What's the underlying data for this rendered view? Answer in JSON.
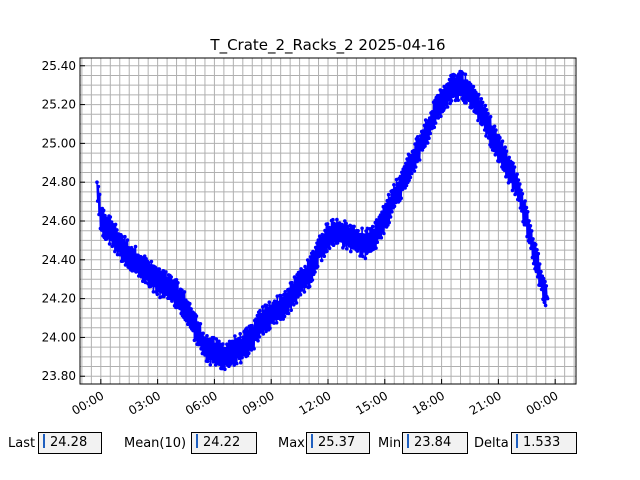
{
  "chart_data": {
    "type": "line",
    "title": "T_Crate_2_Racks_2 2025-04-16",
    "xlabel": "",
    "ylabel": "",
    "x_tick_labels": [
      "00:00",
      "03:00",
      "06:00",
      "09:00",
      "12:00",
      "15:00",
      "18:00",
      "21:00",
      "00:00"
    ],
    "x_tick_hours": [
      0,
      3,
      6,
      9,
      12,
      15,
      18,
      21,
      24
    ],
    "xlim_hours": [
      -1.1,
      25.1
    ],
    "y_tick_labels": [
      "23.80",
      "24.00",
      "24.20",
      "24.40",
      "24.60",
      "24.80",
      "25.00",
      "25.20",
      "25.40"
    ],
    "y_tick_values": [
      23.8,
      24.0,
      24.2,
      24.4,
      24.6,
      24.8,
      25.0,
      25.2,
      25.4
    ],
    "ylim": [
      23.76,
      25.44
    ],
    "grid": true,
    "series": [
      {
        "color": "#0000ff",
        "marker": "circle",
        "x_hours": [
          -0.2,
          0.0,
          0.5,
          1.0,
          1.5,
          2.0,
          2.5,
          3.0,
          3.5,
          4.0,
          4.5,
          5.0,
          5.5,
          6.0,
          6.5,
          7.0,
          7.5,
          8.0,
          8.5,
          9.0,
          9.5,
          10.0,
          10.5,
          11.0,
          11.5,
          12.0,
          12.5,
          13.0,
          13.5,
          14.0,
          14.5,
          15.0,
          15.5,
          16.0,
          16.5,
          17.0,
          17.5,
          18.0,
          18.5,
          19.0,
          19.5,
          20.0,
          20.5,
          21.0,
          21.5,
          22.0,
          22.5,
          23.0,
          23.3,
          23.6
        ],
        "values": [
          24.8,
          24.6,
          24.55,
          24.48,
          24.42,
          24.38,
          24.33,
          24.29,
          24.26,
          24.22,
          24.15,
          24.05,
          23.95,
          23.92,
          23.9,
          23.93,
          23.95,
          24.0,
          24.08,
          24.12,
          24.15,
          24.2,
          24.28,
          24.33,
          24.45,
          24.52,
          24.55,
          24.52,
          24.5,
          24.48,
          24.52,
          24.62,
          24.72,
          24.82,
          24.92,
          25.02,
          25.12,
          25.22,
          25.28,
          25.3,
          25.26,
          25.18,
          25.08,
          24.98,
          24.88,
          24.78,
          24.6,
          24.4,
          24.28,
          24.2
        ],
        "noise_amplitude": 0.07
      }
    ]
  },
  "stats": [
    {
      "label": "Last",
      "value": "24.28"
    },
    {
      "label": "Mean(10)",
      "value": "24.22"
    },
    {
      "label": "Max",
      "value": "25.37"
    },
    {
      "label": "Min",
      "value": "23.84"
    },
    {
      "label": "Delta",
      "value": "1.533"
    }
  ]
}
